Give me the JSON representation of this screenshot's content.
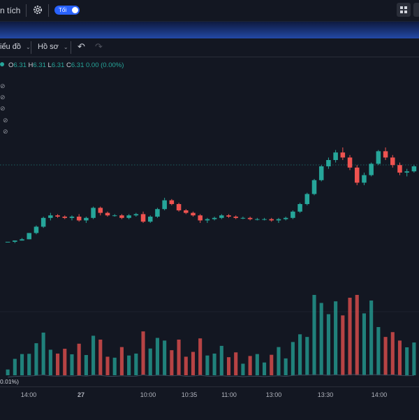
{
  "topbar": {
    "analysis_label": "n tích",
    "theme_toggle_label": "Tối",
    "theme_toggle_on": true
  },
  "toolbar": {
    "chart_menu_label": "iểu đồ",
    "profile_menu_label": "Hồ sơ"
  },
  "legend": {
    "open_label": "O",
    "open_value": "6.31",
    "high_label": "H",
    "high_value": "6.31",
    "low_label": "L",
    "low_value": "6.31",
    "close_label": "C",
    "close_value": "6.31",
    "change": "0.00 (0.00%)"
  },
  "volume_change_label": "0.01%)",
  "time_axis": {
    "ticks": [
      "14:00",
      "27",
      "10:00",
      "10:35",
      "11:00",
      "13:00",
      "13:30",
      "14:00"
    ]
  },
  "colors": {
    "up": "#26a69a",
    "down": "#ef5350",
    "background": "#131722",
    "accent": "#2962ff"
  },
  "chart_data": {
    "type": "candlestick",
    "title": "",
    "xlabel": "",
    "ylabel": "",
    "last_price": 6.31,
    "x_ticks": [
      "14:00",
      "27",
      "10:00",
      "10:35",
      "11:00",
      "13:00",
      "13:30",
      "14:00"
    ],
    "note": "price and volume values are not printed in the screenshot; series approximates the visible shape on a relative scale",
    "candles_relative": [
      [
        0.05,
        0.05,
        0.05,
        0.05
      ],
      [
        0.05,
        0.06,
        0.04,
        0.06
      ],
      [
        0.06,
        0.08,
        0.06,
        0.07
      ],
      [
        0.07,
        0.12,
        0.07,
        0.12
      ],
      [
        0.12,
        0.18,
        0.11,
        0.17
      ],
      [
        0.17,
        0.25,
        0.16,
        0.24
      ],
      [
        0.24,
        0.28,
        0.22,
        0.26
      ],
      [
        0.26,
        0.27,
        0.24,
        0.25
      ],
      [
        0.25,
        0.26,
        0.23,
        0.24
      ],
      [
        0.24,
        0.26,
        0.22,
        0.25
      ],
      [
        0.25,
        0.27,
        0.21,
        0.22
      ],
      [
        0.22,
        0.25,
        0.2,
        0.24
      ],
      [
        0.24,
        0.33,
        0.23,
        0.32
      ],
      [
        0.32,
        0.33,
        0.26,
        0.28
      ],
      [
        0.28,
        0.29,
        0.25,
        0.26
      ],
      [
        0.26,
        0.27,
        0.25,
        0.26
      ],
      [
        0.26,
        0.27,
        0.23,
        0.24
      ],
      [
        0.24,
        0.27,
        0.23,
        0.26
      ],
      [
        0.26,
        0.28,
        0.25,
        0.27
      ],
      [
        0.27,
        0.29,
        0.2,
        0.21
      ],
      [
        0.21,
        0.26,
        0.2,
        0.25
      ],
      [
        0.25,
        0.32,
        0.24,
        0.31
      ],
      [
        0.31,
        0.4,
        0.3,
        0.38
      ],
      [
        0.38,
        0.39,
        0.34,
        0.35
      ],
      [
        0.35,
        0.36,
        0.29,
        0.3
      ],
      [
        0.3,
        0.31,
        0.27,
        0.28
      ],
      [
        0.28,
        0.29,
        0.25,
        0.26
      ],
      [
        0.26,
        0.27,
        0.2,
        0.22
      ],
      [
        0.22,
        0.24,
        0.2,
        0.23
      ],
      [
        0.23,
        0.25,
        0.22,
        0.24
      ],
      [
        0.24,
        0.27,
        0.23,
        0.26
      ],
      [
        0.26,
        0.27,
        0.24,
        0.25
      ],
      [
        0.25,
        0.26,
        0.23,
        0.24
      ],
      [
        0.24,
        0.25,
        0.23,
        0.24
      ],
      [
        0.24,
        0.25,
        0.22,
        0.23
      ],
      [
        0.23,
        0.24,
        0.22,
        0.23
      ],
      [
        0.23,
        0.24,
        0.22,
        0.23
      ],
      [
        0.23,
        0.24,
        0.21,
        0.22
      ],
      [
        0.22,
        0.24,
        0.2,
        0.23
      ],
      [
        0.23,
        0.25,
        0.22,
        0.24
      ],
      [
        0.24,
        0.3,
        0.23,
        0.29
      ],
      [
        0.29,
        0.36,
        0.28,
        0.35
      ],
      [
        0.35,
        0.44,
        0.34,
        0.43
      ],
      [
        0.43,
        0.55,
        0.42,
        0.54
      ],
      [
        0.54,
        0.66,
        0.53,
        0.65
      ],
      [
        0.65,
        0.72,
        0.63,
        0.7
      ],
      [
        0.7,
        0.78,
        0.68,
        0.76
      ],
      [
        0.76,
        0.8,
        0.7,
        0.72
      ],
      [
        0.72,
        0.74,
        0.62,
        0.64
      ],
      [
        0.64,
        0.66,
        0.5,
        0.52
      ],
      [
        0.52,
        0.6,
        0.5,
        0.58
      ],
      [
        0.58,
        0.68,
        0.57,
        0.67
      ],
      [
        0.67,
        0.78,
        0.66,
        0.77
      ],
      [
        0.77,
        0.8,
        0.7,
        0.72
      ],
      [
        0.72,
        0.74,
        0.64,
        0.66
      ],
      [
        0.66,
        0.68,
        0.58,
        0.6
      ],
      [
        0.6,
        0.63,
        0.57,
        0.61
      ],
      [
        0.61,
        0.66,
        0.6,
        0.65
      ]
    ]
  }
}
